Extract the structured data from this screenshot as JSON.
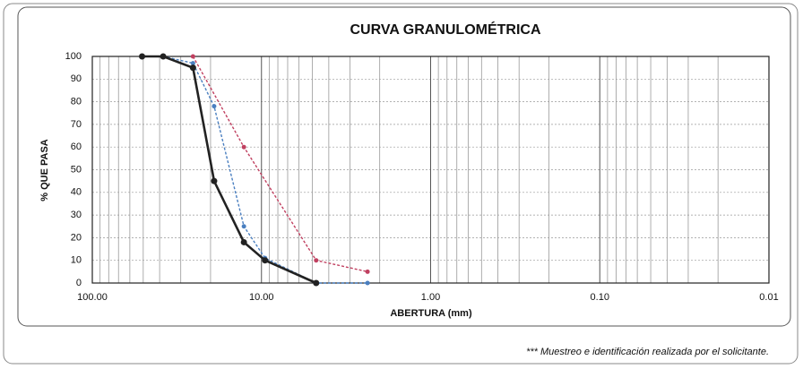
{
  "chart_data": {
    "type": "line",
    "title": "CURVA GRANULOMÉTRICA",
    "x_label": "ABERTURA (mm)",
    "y_label": "% QUE PASA",
    "xscale": "log",
    "xlim": [
      100,
      0.01
    ],
    "xticks": [
      {
        "value": 100,
        "label": "100.00"
      },
      {
        "value": 10,
        "label": "10.00"
      },
      {
        "value": 1,
        "label": "1.00"
      },
      {
        "value": 0.1,
        "label": "0.10"
      },
      {
        "value": 0.01,
        "label": "0.01"
      }
    ],
    "ylim": [
      0,
      100
    ],
    "yticks": [
      0,
      10,
      20,
      30,
      40,
      50,
      60,
      70,
      80,
      90,
      100
    ],
    "grid": true,
    "series": [
      {
        "color": "#222222",
        "dash": false,
        "x": [
          50.8,
          38.1,
          25.4,
          19.05,
          12.7,
          9.525,
          4.75
        ],
        "values": [
          100,
          100,
          95,
          45,
          18,
          10,
          0
        ]
      },
      {
        "color": "#4a7fc0",
        "dash": true,
        "x": [
          38.1,
          25.4,
          19.05,
          12.7,
          9.525,
          4.75,
          2.36
        ],
        "values": [
          100,
          97,
          78,
          25,
          11,
          0,
          0
        ]
      },
      {
        "color": "#c04060",
        "dash": true,
        "x": [
          25.4,
          12.7,
          4.75,
          2.36
        ],
        "values": [
          100,
          60,
          10,
          5
        ]
      }
    ],
    "footnote": "*** Muestreo e identificación realizada por el solicitante."
  }
}
